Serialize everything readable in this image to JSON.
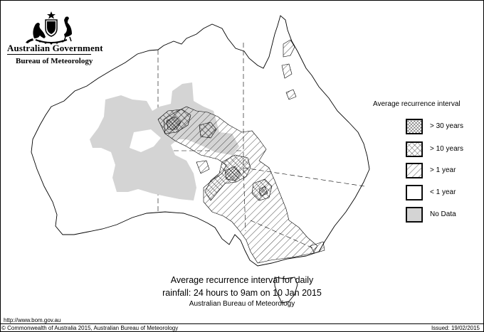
{
  "header": {
    "government": "Australian Government",
    "agency": "Bureau of Meteorology"
  },
  "legend": {
    "title": "Average recurrence interval",
    "items": [
      {
        "key": "gt30",
        "label": "> 30 years",
        "pattern": "dense-crosshatch"
      },
      {
        "key": "gt10",
        "label": "> 10 years",
        "pattern": "crosshatch"
      },
      {
        "key": "gt1",
        "label": "> 1 year",
        "pattern": "diagonal-hatch"
      },
      {
        "key": "lt1",
        "label": "< 1 year",
        "pattern": "blank"
      },
      {
        "key": "nodata",
        "label": "No Data",
        "pattern": "gray-fill"
      }
    ]
  },
  "caption": {
    "line1": "Average recurrence interval for daily",
    "line2": "rainfall: 24 hours to 9am on 10 Jan 2015",
    "line3": "Australian Bureau of Meteorology"
  },
  "footer": {
    "url": "http://www.bom.gov.au",
    "copyright": "© Commonwealth of Australia 2015, Australian Bureau of Meteorology",
    "issued": "Issued: 19/02/2015"
  },
  "colors": {
    "nodata": "#d4d4d4",
    "line": "#000000",
    "background": "#ffffff"
  }
}
